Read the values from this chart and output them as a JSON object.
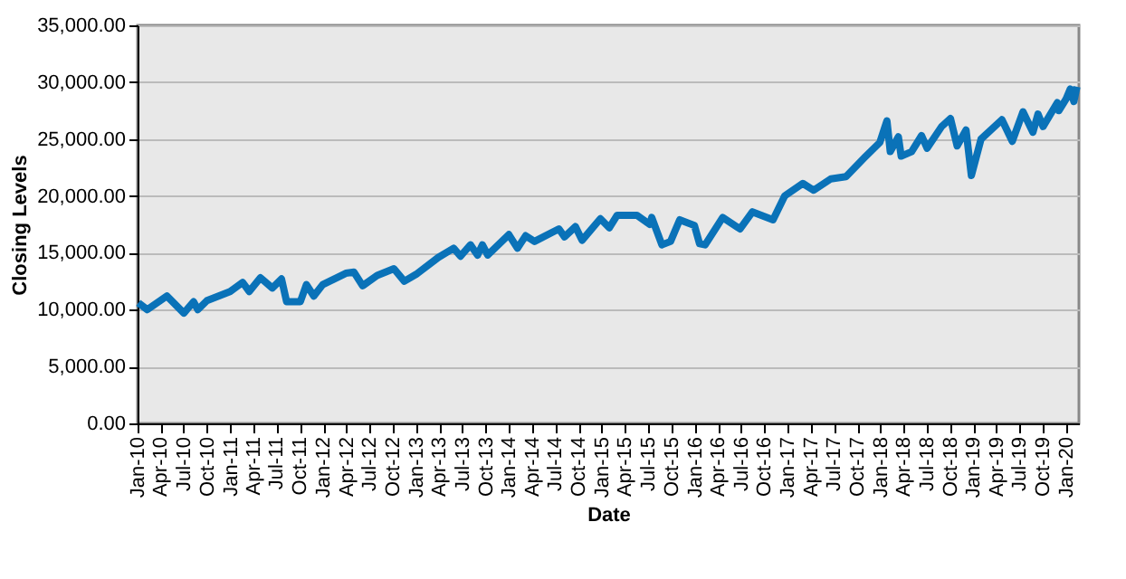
{
  "chart_data": {
    "type": "line",
    "xlabel": "Date",
    "ylabel": "Closing Levels",
    "grid": "y",
    "marker": "none",
    "line_style": "solid",
    "xlim": [
      "2010-01-01",
      "2020-02-20"
    ],
    "ylim": [
      0,
      35000
    ],
    "yticks": [
      {
        "value": 0,
        "label": "0.00"
      },
      {
        "value": 5000,
        "label": "5,000.00"
      },
      {
        "value": 10000,
        "label": "10,000.00"
      },
      {
        "value": 15000,
        "label": "15,000.00"
      },
      {
        "value": 20000,
        "label": "20,000.00"
      },
      {
        "value": 25000,
        "label": "25,000.00"
      },
      {
        "value": 30000,
        "label": "30,000.00"
      },
      {
        "value": 35000,
        "label": "35,000.00"
      }
    ],
    "xticks": [
      {
        "value": "2010-01-01",
        "label": "Jan-10"
      },
      {
        "value": "2010-04-01",
        "label": "Apr-10"
      },
      {
        "value": "2010-07-01",
        "label": "Jul-10"
      },
      {
        "value": "2010-10-01",
        "label": "Oct-10"
      },
      {
        "value": "2011-01-01",
        "label": "Jan-11"
      },
      {
        "value": "2011-04-01",
        "label": "Apr-11"
      },
      {
        "value": "2011-07-01",
        "label": "Jul-11"
      },
      {
        "value": "2011-10-01",
        "label": "Oct-11"
      },
      {
        "value": "2012-01-01",
        "label": "Jan-12"
      },
      {
        "value": "2012-04-01",
        "label": "Apr-12"
      },
      {
        "value": "2012-07-01",
        "label": "Jul-12"
      },
      {
        "value": "2012-10-01",
        "label": "Oct-12"
      },
      {
        "value": "2013-01-01",
        "label": "Jan-13"
      },
      {
        "value": "2013-04-01",
        "label": "Apr-13"
      },
      {
        "value": "2013-07-01",
        "label": "Jul-13"
      },
      {
        "value": "2013-10-01",
        "label": "Oct-13"
      },
      {
        "value": "2014-01-01",
        "label": "Jan-14"
      },
      {
        "value": "2014-04-01",
        "label": "Apr-14"
      },
      {
        "value": "2014-07-01",
        "label": "Jul-14"
      },
      {
        "value": "2014-10-01",
        "label": "Oct-14"
      },
      {
        "value": "2015-01-01",
        "label": "Jan-15"
      },
      {
        "value": "2015-04-01",
        "label": "Apr-15"
      },
      {
        "value": "2015-07-01",
        "label": "Jul-15"
      },
      {
        "value": "2015-10-01",
        "label": "Oct-15"
      },
      {
        "value": "2016-01-01",
        "label": "Jan-16"
      },
      {
        "value": "2016-04-01",
        "label": "Apr-16"
      },
      {
        "value": "2016-07-01",
        "label": "Jul-16"
      },
      {
        "value": "2016-10-01",
        "label": "Oct-16"
      },
      {
        "value": "2017-01-01",
        "label": "Jan-17"
      },
      {
        "value": "2017-04-01",
        "label": "Apr-17"
      },
      {
        "value": "2017-07-01",
        "label": "Jul-17"
      },
      {
        "value": "2017-10-01",
        "label": "Oct-17"
      },
      {
        "value": "2018-01-01",
        "label": "Jan-18"
      },
      {
        "value": "2018-04-01",
        "label": "Apr-18"
      },
      {
        "value": "2018-07-01",
        "label": "Jul-18"
      },
      {
        "value": "2018-10-01",
        "label": "Oct-18"
      },
      {
        "value": "2019-01-01",
        "label": "Jan-19"
      },
      {
        "value": "2019-04-01",
        "label": "Apr-19"
      },
      {
        "value": "2019-07-01",
        "label": "Jul-19"
      },
      {
        "value": "2019-10-01",
        "label": "Oct-19"
      },
      {
        "value": "2020-01-01",
        "label": "Jan-20"
      }
    ],
    "x": [
      "2010-01-04",
      "2010-02-08",
      "2010-04-26",
      "2010-07-02",
      "2010-08-09",
      "2010-08-26",
      "2010-10-01",
      "2010-12-31",
      "2011-02-18",
      "2011-03-16",
      "2011-04-29",
      "2011-06-15",
      "2011-07-21",
      "2011-08-10",
      "2011-09-22",
      "2011-10-03",
      "2011-10-27",
      "2011-11-25",
      "2011-12-30",
      "2012-03-30",
      "2012-05-01",
      "2012-06-04",
      "2012-07-31",
      "2012-10-05",
      "2012-11-15",
      "2012-12-31",
      "2013-03-29",
      "2013-05-28",
      "2013-06-24",
      "2013-08-02",
      "2013-08-30",
      "2013-09-18",
      "2013-10-09",
      "2013-12-31",
      "2014-02-03",
      "2014-03-07",
      "2014-04-11",
      "2014-07-16",
      "2014-08-07",
      "2014-09-19",
      "2014-10-15",
      "2014-12-26",
      "2015-01-30",
      "2015-03-02",
      "2015-05-19",
      "2015-07-08",
      "2015-07-16",
      "2015-08-25",
      "2015-09-28",
      "2015-11-03",
      "2015-12-31",
      "2016-01-20",
      "2016-02-11",
      "2016-04-20",
      "2016-06-27",
      "2016-08-15",
      "2016-11-04",
      "2016-12-20",
      "2017-03-01",
      "2017-04-13",
      "2017-06-19",
      "2017-08-18",
      "2017-10-31",
      "2017-12-29",
      "2018-01-26",
      "2018-02-08",
      "2018-03-12",
      "2018-03-23",
      "2018-05-03",
      "2018-06-11",
      "2018-07-03",
      "2018-08-29",
      "2018-10-03",
      "2018-10-29",
      "2018-12-03",
      "2018-12-24",
      "2019-01-31",
      "2019-04-23",
      "2019-06-03",
      "2019-07-15",
      "2019-08-23",
      "2019-09-12",
      "2019-10-02",
      "2019-11-27",
      "2019-12-03",
      "2019-12-31",
      "2020-01-17",
      "2020-01-31",
      "2020-02-12"
    ],
    "series": [
      {
        "color": "#0a72b8",
        "values": [
          10600,
          10000,
          11200,
          9700,
          10700,
          10000,
          10800,
          11600,
          12400,
          11600,
          12800,
          11900,
          12700,
          10700,
          10700,
          10700,
          12200,
          11200,
          12200,
          13200,
          13300,
          12100,
          13000,
          13600,
          12500,
          13100,
          14600,
          15400,
          14700,
          15700,
          14800,
          15700,
          14800,
          16600,
          15400,
          16500,
          16000,
          17100,
          16400,
          17300,
          16100,
          18000,
          17200,
          18300,
          18300,
          17500,
          18100,
          15700,
          16000,
          17900,
          17400,
          15800,
          15700,
          18100,
          17100,
          18600,
          17900,
          20000,
          21100,
          20500,
          21500,
          21700,
          23400,
          24700,
          26600,
          23900,
          25200,
          23500,
          23900,
          25300,
          24200,
          26100,
          26800,
          24400,
          25800,
          21800,
          25000,
          26700,
          24800,
          27400,
          25600,
          27200,
          26100,
          28200,
          27500,
          28500,
          29400,
          28300,
          29600
        ]
      }
    ]
  }
}
